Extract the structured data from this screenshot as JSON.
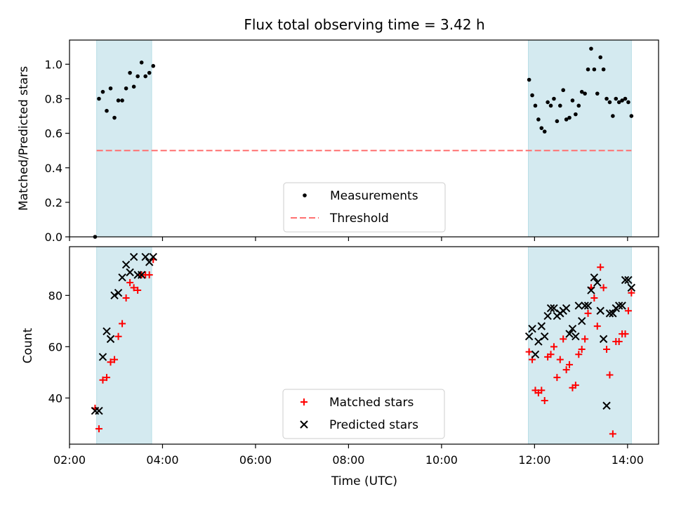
{
  "chart_data": [
    {
      "type": "scatter",
      "title": "Flux total observing time = 3.42 h",
      "xlabel": "",
      "ylabel": "Matched/Predicted stars",
      "xlim": [
        "02:00",
        "14:40"
      ],
      "ylim": [
        0,
        1.14
      ],
      "yticks": [
        "0.0",
        "0.2",
        "0.4",
        "0.6",
        "0.8",
        "1.0"
      ],
      "grid": false,
      "legend_position": "bottom-center",
      "observing_windows": [
        [
          "02:35",
          "03:46"
        ],
        [
          "11:52",
          "14:05"
        ]
      ],
      "window_color": "#d4eaf0",
      "series": [
        {
          "name": "Measurements",
          "marker": "dot",
          "color": "#000000",
          "x": [
            "02:33",
            "02:38",
            "02:43",
            "02:48",
            "02:53",
            "02:58",
            "03:03",
            "03:08",
            "03:13",
            "03:18",
            "03:23",
            "03:28",
            "03:33",
            "03:38",
            "03:43",
            "03:48",
            "11:53",
            "11:57",
            "12:01",
            "12:05",
            "12:09",
            "12:13",
            "12:17",
            "12:21",
            "12:25",
            "12:29",
            "12:33",
            "12:37",
            "12:41",
            "12:45",
            "12:49",
            "12:53",
            "12:57",
            "13:01",
            "13:05",
            "13:09",
            "13:13",
            "13:17",
            "13:21",
            "13:25",
            "13:29",
            "13:33",
            "13:37",
            "13:41",
            "13:45",
            "13:49",
            "13:53",
            "13:57",
            "14:01",
            "14:05"
          ],
          "y": [
            0.0,
            0.8,
            0.84,
            0.73,
            0.86,
            0.69,
            0.79,
            0.79,
            0.86,
            0.95,
            0.87,
            0.93,
            1.01,
            0.93,
            0.95,
            0.99,
            0.91,
            0.82,
            0.76,
            0.68,
            0.63,
            0.61,
            0.78,
            0.76,
            0.8,
            0.67,
            0.76,
            0.85,
            0.68,
            0.69,
            0.79,
            0.71,
            0.76,
            0.84,
            0.83,
            0.97,
            1.09,
            0.97,
            0.83,
            1.04,
            0.97,
            0.8,
            0.78,
            0.7,
            0.8,
            0.78,
            0.79,
            0.8,
            0.78,
            0.7
          ]
        },
        {
          "name": "Threshold",
          "style": "dashed",
          "color": "#ff7070",
          "x": [
            "02:35",
            "14:05"
          ],
          "y": [
            0.5,
            0.5
          ]
        }
      ]
    },
    {
      "type": "scatter",
      "title": "",
      "xlabel": "Time (UTC)",
      "ylabel": "Count",
      "xlim": [
        "02:00",
        "14:40"
      ],
      "ylim": [
        22,
        99
      ],
      "yticks": [
        "40",
        "60",
        "80"
      ],
      "xticks": [
        "02:00",
        "04:00",
        "06:00",
        "08:00",
        "10:00",
        "12:00",
        "14:00"
      ],
      "grid": false,
      "legend_position": "bottom-center",
      "observing_windows": [
        [
          "02:35",
          "03:46"
        ],
        [
          "11:52",
          "14:05"
        ]
      ],
      "window_color": "#d4eaf0",
      "series": [
        {
          "name": "Matched stars",
          "marker": "plus",
          "color": "#ff0000",
          "x": [
            "02:33",
            "02:38",
            "02:43",
            "02:48",
            "02:53",
            "02:58",
            "03:03",
            "03:08",
            "03:13",
            "03:18",
            "03:23",
            "03:28",
            "03:33",
            "03:38",
            "03:43",
            "03:48",
            "11:53",
            "11:57",
            "12:01",
            "12:05",
            "12:09",
            "12:13",
            "12:17",
            "12:21",
            "12:25",
            "12:29",
            "12:33",
            "12:37",
            "12:41",
            "12:45",
            "12:49",
            "12:53",
            "12:57",
            "13:01",
            "13:05",
            "13:09",
            "13:13",
            "13:17",
            "13:21",
            "13:25",
            "13:29",
            "13:33",
            "13:37",
            "13:41",
            "13:45",
            "13:49",
            "13:53",
            "13:57",
            "14:01",
            "14:05"
          ],
          "y": [
            36,
            28,
            47,
            48,
            54,
            55,
            64,
            69,
            79,
            85,
            83,
            82,
            88,
            88,
            88,
            94,
            58,
            55,
            43,
            42,
            43,
            39,
            56,
            57,
            60,
            48,
            55,
            63,
            51,
            53,
            44,
            45,
            57,
            59,
            63,
            73,
            83,
            79,
            68,
            91,
            83,
            59,
            49,
            26,
            62,
            62,
            65,
            65,
            74,
            81
          ]
        },
        {
          "name": "Predicted stars",
          "marker": "x",
          "color": "#000000",
          "x": [
            "02:33",
            "02:38",
            "02:43",
            "02:48",
            "02:53",
            "02:58",
            "03:03",
            "03:08",
            "03:13",
            "03:18",
            "03:23",
            "03:28",
            "03:33",
            "03:38",
            "03:43",
            "03:48",
            "11:53",
            "11:57",
            "12:01",
            "12:05",
            "12:09",
            "12:13",
            "12:17",
            "12:21",
            "12:25",
            "12:29",
            "12:33",
            "12:37",
            "12:41",
            "12:45",
            "12:49",
            "12:53",
            "12:57",
            "13:01",
            "13:05",
            "13:09",
            "13:13",
            "13:17",
            "13:21",
            "13:25",
            "13:29",
            "13:33",
            "13:37",
            "13:41",
            "13:45",
            "13:49",
            "13:53",
            "13:57",
            "14:01",
            "14:05"
          ],
          "y": [
            35,
            35,
            56,
            66,
            63,
            80,
            81,
            87,
            92,
            89,
            95,
            88,
            88,
            95,
            93,
            95,
            64,
            67,
            57,
            62,
            68,
            64,
            72,
            75,
            75,
            72,
            73,
            74,
            75,
            65,
            67,
            64,
            76,
            70,
            76,
            76,
            82,
            87,
            85,
            74,
            63,
            37,
            73,
            73,
            75,
            76,
            76,
            86,
            86,
            83
          ]
        }
      ]
    }
  ]
}
